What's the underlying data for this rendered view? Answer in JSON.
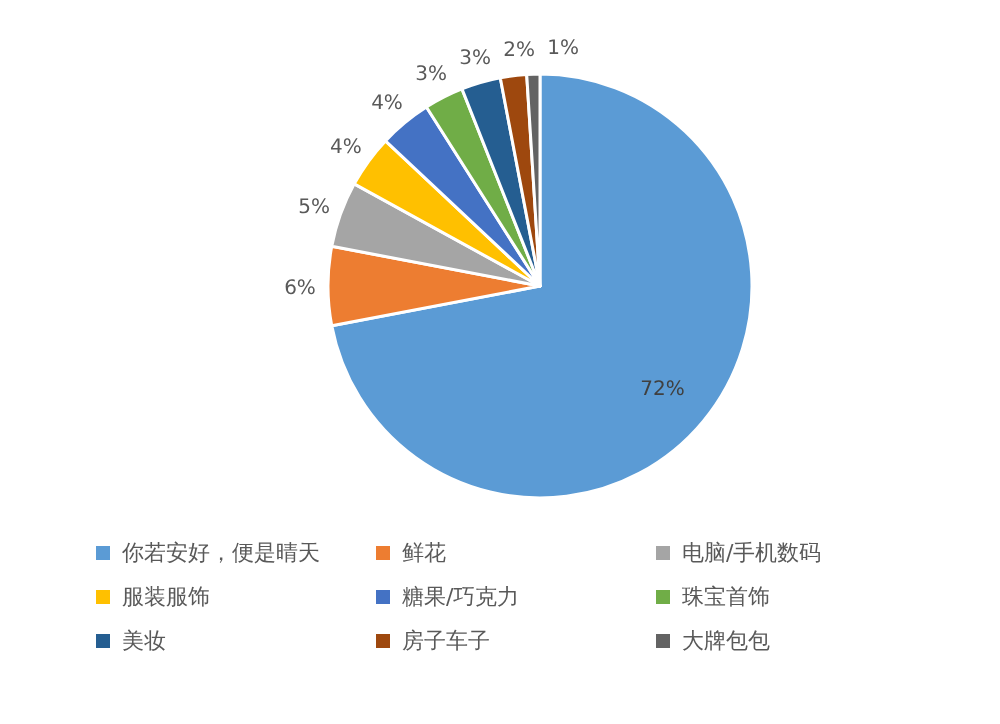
{
  "chart_data": {
    "type": "pie",
    "categories": [
      "你若安好，便是晴天",
      "鲜花",
      "电脑/手机数码",
      "服装服饰",
      "糖果/巧克力",
      "珠宝首饰",
      "美妆",
      "房子车子",
      "大牌包包"
    ],
    "values": [
      72,
      6,
      5,
      4,
      4,
      3,
      3,
      2,
      1
    ],
    "colors": [
      "#5b9bd5",
      "#ed7d31",
      "#a5a5a5",
      "#ffc000",
      "#4472c4",
      "#70ad47",
      "#255e91",
      "#9e480e",
      "#636363"
    ],
    "value_labels": [
      "72%",
      "6%",
      "5%",
      "4%",
      "4%",
      "3%",
      "3%",
      "2%",
      "1%"
    ],
    "legend": "bottom"
  }
}
